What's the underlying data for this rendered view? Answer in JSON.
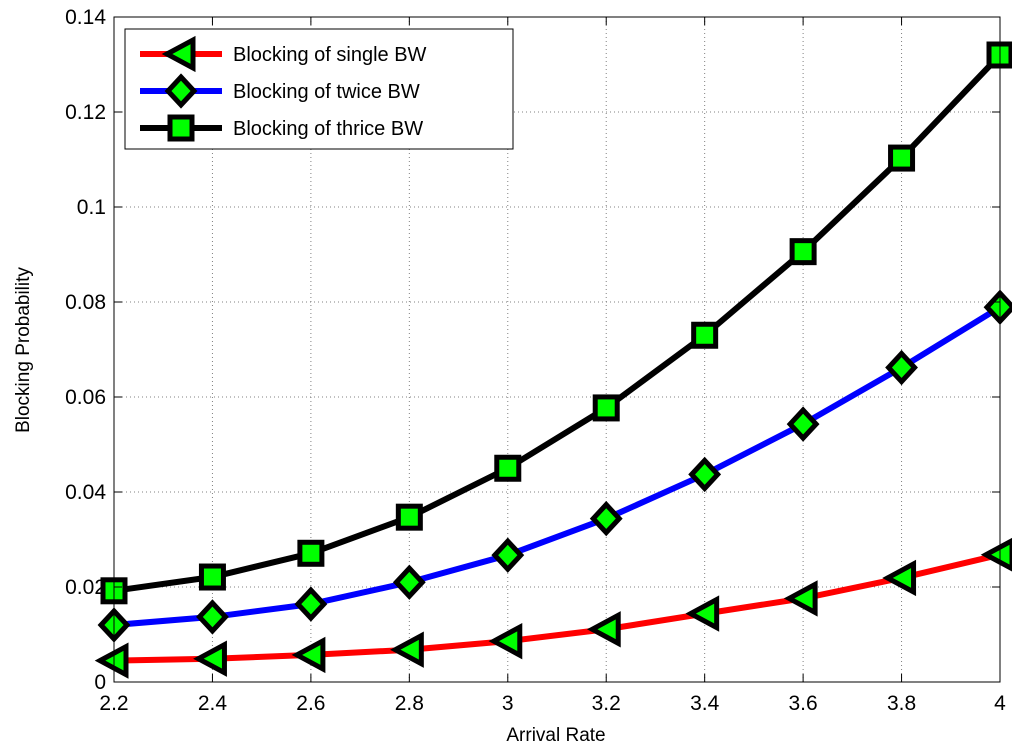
{
  "chart_data": {
    "type": "line",
    "xlabel": "Arrival Rate",
    "ylabel": "Blocking Probability",
    "xlim": [
      2.2,
      4
    ],
    "ylim": [
      0,
      0.14
    ],
    "xticks": [
      "2.2",
      "2.4",
      "2.6",
      "2.8",
      "3",
      "3.2",
      "3.4",
      "3.6",
      "3.8",
      "4"
    ],
    "yticks": [
      "0",
      "0.02",
      "0.04",
      "0.06",
      "0.08",
      "0.1",
      "0.12",
      "0.14"
    ],
    "grid": true,
    "legend_position": "top-left",
    "x": [
      2.2,
      2.4,
      2.6,
      2.8,
      3.0,
      3.2,
      3.4,
      3.6,
      3.8,
      4.0
    ],
    "series": [
      {
        "name": "Blocking of single BW",
        "color": "#ff0000",
        "marker": "left-triangle",
        "values": [
          0.0045,
          0.0049,
          0.0057,
          0.0068,
          0.0086,
          0.0111,
          0.0144,
          0.0176,
          0.0219,
          0.0268
        ]
      },
      {
        "name": "Blocking of twice BW",
        "color": "#0000ff",
        "marker": "diamond",
        "values": [
          0.012,
          0.0137,
          0.0164,
          0.021,
          0.0267,
          0.0344,
          0.0437,
          0.0543,
          0.0662,
          0.0789
        ]
      },
      {
        "name": "Blocking of thrice BW",
        "color": "#000000",
        "marker": "square",
        "values": [
          0.0192,
          0.0221,
          0.0271,
          0.0347,
          0.045,
          0.0577,
          0.073,
          0.0906,
          0.1103,
          0.132
        ]
      }
    ],
    "marker_fill": "#00ff00",
    "marker_edge": "#000000"
  }
}
